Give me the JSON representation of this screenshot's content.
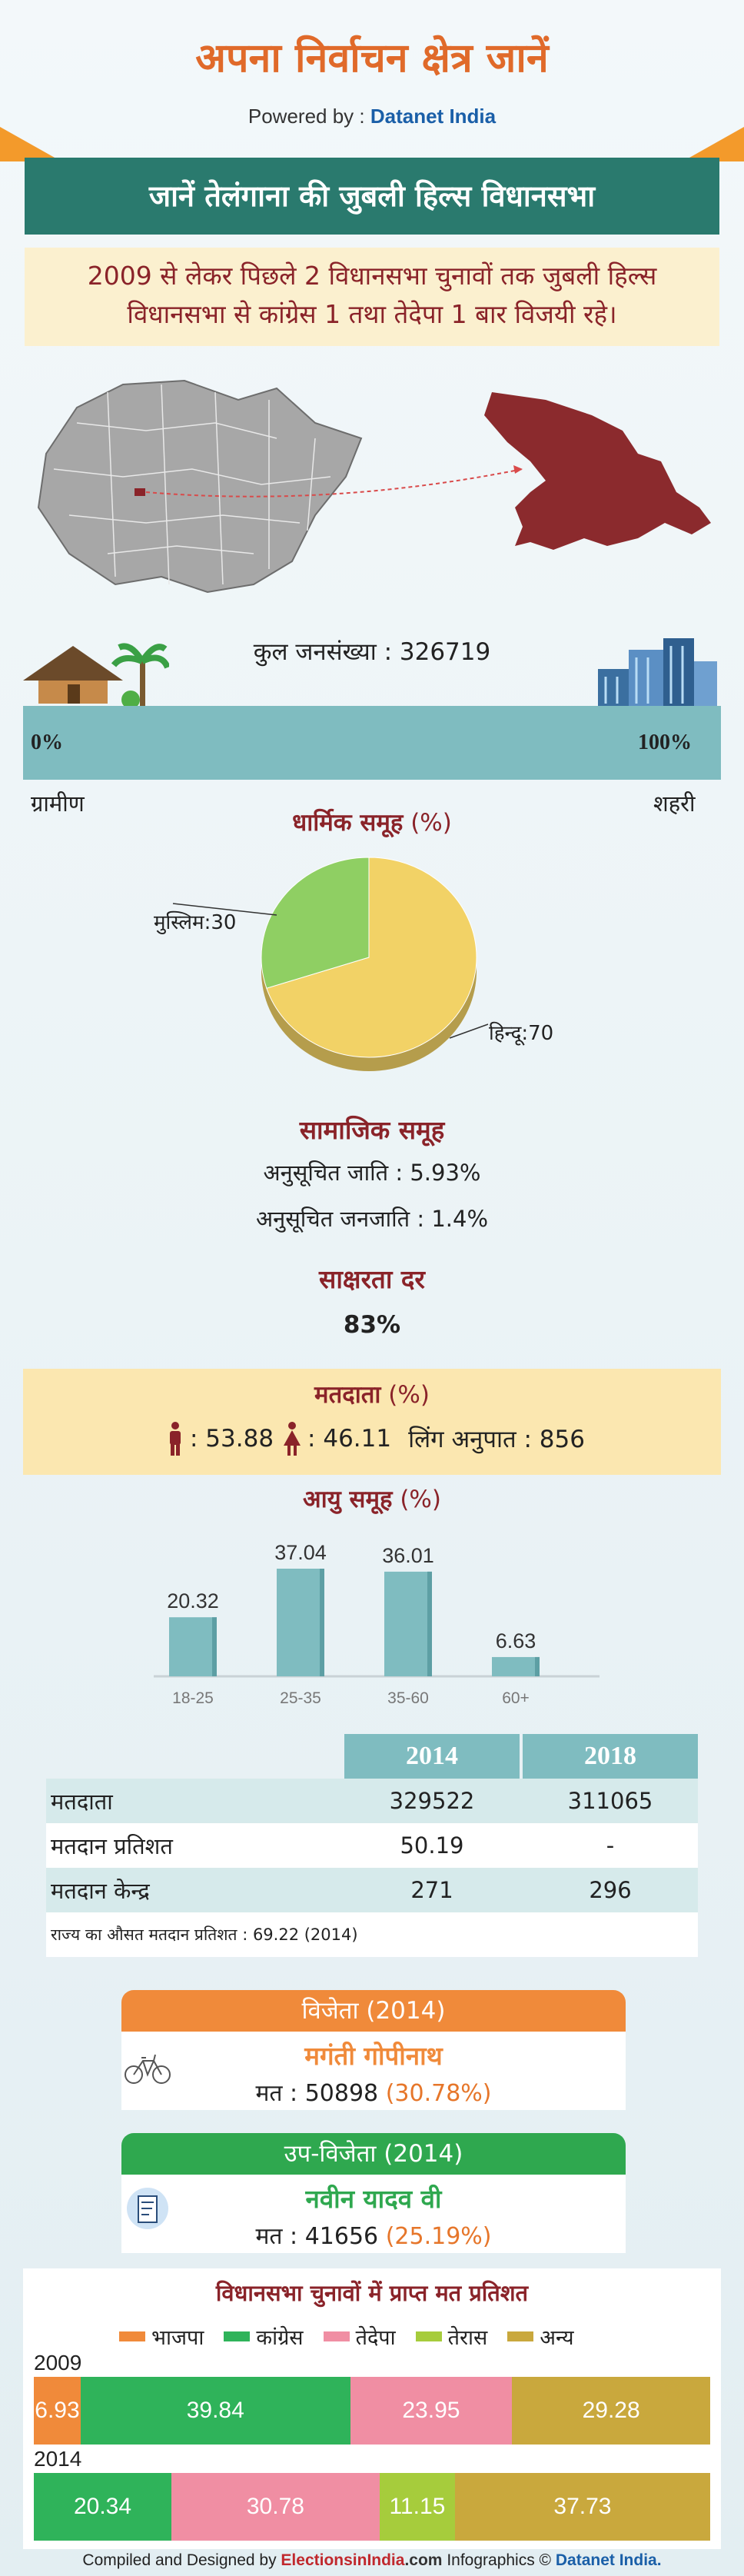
{
  "header": {
    "title": "अपना निर्वाचन क्षेत्र जानें",
    "powered_prefix": "Powered by :",
    "powered_brand": "Datanet India"
  },
  "banner": {
    "title": "जानें तेलंगाना की जुबली हिल्स विधानसभा"
  },
  "summary": {
    "text": "2009 से लेकर पिछले 2 विधानसभा चुनावों तक जुबली हिल्स विधानसभा से कांग्रेस 1 तथा तेदेपा 1 बार विजयी रहे।"
  },
  "population": {
    "label": "कुल जनसंख्या : 326719",
    "rural_pct": "0%",
    "urban_pct": "100%",
    "rural_label": "ग्रामीण",
    "urban_label": "शहरी"
  },
  "religion": {
    "title": "धार्मिक समूह",
    "unit": "(%)",
    "slices": [
      {
        "label": "हिन्दू:70",
        "value": 70,
        "color": "#f2d266"
      },
      {
        "label": "मुस्लिम:30",
        "value": 30,
        "color": "#8fcf63"
      }
    ]
  },
  "social": {
    "title": "सामाजिक समूह",
    "sc": "अनुसूचित जाति :  5.93%",
    "st": "अनुसूचित जनजाति :  1.4%"
  },
  "literacy": {
    "title": "साक्षरता दर",
    "value": "83%"
  },
  "voters": {
    "title": "मतदाता",
    "unit": "(%)",
    "male": ": 53.88",
    "female": ": 46.11",
    "sex_ratio": "लिंग अनुपात : 856"
  },
  "chart_data": {
    "type": "bar",
    "title": "आयु समूह",
    "unit": "(%)",
    "categories": [
      "18-25",
      "25-35",
      "35-60",
      "60+"
    ],
    "values": [
      20.32,
      37.04,
      36.01,
      6.63
    ],
    "value_labels": [
      "20.32",
      "37.04",
      "36.01",
      "6.63"
    ],
    "color": "#7fbcc0"
  },
  "table": {
    "headers": [
      "",
      "2014",
      "2018"
    ],
    "rows": [
      [
        "मतदाता",
        "329522",
        "311065"
      ],
      [
        "मतदान प्रतिशत",
        "50.19",
        "-"
      ],
      [
        "मतदान केन्द्र",
        "271",
        "296"
      ]
    ],
    "note": "राज्य का औसत मतदान प्रतिशत : 69.22 (2014)"
  },
  "winner": {
    "title": "विजेता",
    "year": "(2014)",
    "name": "मगंती गोपीनाथ",
    "votes_prefix": "मत : 50898",
    "votes_pct": "(30.78%)",
    "color": "#f08a3a"
  },
  "runner": {
    "title": "उप-विजेता",
    "year": "(2014)",
    "name": "नवीन यादव वी",
    "votes_prefix": "मत : 41656",
    "votes_pct": "(25.19%)",
    "color": "#2fa84f"
  },
  "vote_share": {
    "title": "विधानसभा चुनावों में प्राप्त मत प्रतिशत",
    "legend": [
      {
        "label": "भाजपा",
        "color": "#f08a3a"
      },
      {
        "label": "कांग्रेस",
        "color": "#2fb35a"
      },
      {
        "label": "तेदेपा",
        "color": "#f08ea3"
      },
      {
        "label": "तेरास",
        "color": "#a6cc3c"
      },
      {
        "label": "अन्य",
        "color": "#c9a83d"
      }
    ],
    "years": [
      {
        "year": "2009",
        "segments": [
          {
            "value": 6.93,
            "label": "6.93",
            "color": "#f08a3a"
          },
          {
            "value": 39.84,
            "label": "39.84",
            "color": "#2fb35a"
          },
          {
            "value": 23.95,
            "label": "23.95",
            "color": "#f08ea3"
          },
          {
            "value": 29.28,
            "label": "29.28",
            "color": "#c9a83d"
          }
        ]
      },
      {
        "year": "2014",
        "segments": [
          {
            "value": 20.34,
            "label": "20.34",
            "color": "#2fb35a"
          },
          {
            "value": 30.78,
            "label": "30.78",
            "color": "#f08ea3"
          },
          {
            "value": 11.15,
            "label": "11.15",
            "color": "#a6cc3c"
          },
          {
            "value": 37.73,
            "label": "37.73",
            "color": "#c9a83d"
          }
        ]
      }
    ]
  },
  "footer": {
    "compiled": "Compiled and Designed by",
    "brand1": "ElectionsinIndia",
    "brand1_suffix": ".com",
    "infographics": "Infographics ©",
    "brand2": "Datanet India."
  }
}
